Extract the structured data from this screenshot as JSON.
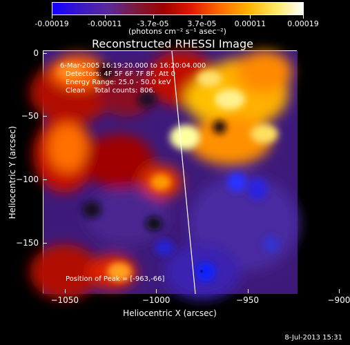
{
  "colorbar": {
    "colors": [
      "#1400ff",
      "#3a18c8",
      "#5a2a9a",
      "#7a1a3a",
      "#a00000",
      "#e01a00",
      "#ff6a00",
      "#ffb000",
      "#ffe860",
      "#ffffff"
    ],
    "tick_labels": [
      "-0.00019",
      "-0.00011",
      "-3.7e-05",
      "3.7e-05",
      "0.00011",
      "0.00019"
    ],
    "tick_values": [
      -0.00019,
      -0.00011,
      -3.7e-05,
      3.7e-05,
      0.00011,
      0.00019
    ],
    "unit": "(photons cm⁻² s⁻¹ asec⁻²)"
  },
  "title": "Reconstructed RHESSI Image",
  "annotations": {
    "time_range": "6-Mar-2005 16:19:20.000 to 16:20:04.000",
    "detectors": "Detectors: 4F 5F 6F 7F 8F, Att 0",
    "energy": "Energy Range: 25.0 - 50.0 keV",
    "method": "Clean    Total counts: 806.",
    "peak": "Position of Peak = [-963,-66]"
  },
  "axes": {
    "xlabel": "Heliocentric X (arcsec)",
    "ylabel": "Heliocentric Y (arcsec)",
    "xlim": [
      -1062,
      -923
    ],
    "ylim": [
      -190,
      2
    ],
    "x_ticks": [
      -1050,
      -1000,
      -950,
      -900
    ],
    "x_tick_labels": [
      "−1050",
      "−1000",
      "−950",
      "−900"
    ],
    "y_ticks": [
      0,
      -50,
      -100,
      -150
    ],
    "y_tick_labels": [
      "0",
      "−50",
      "−100",
      "−150"
    ]
  },
  "footer": {
    "datestamp": "8-Jul-2013 15:31"
  }
}
